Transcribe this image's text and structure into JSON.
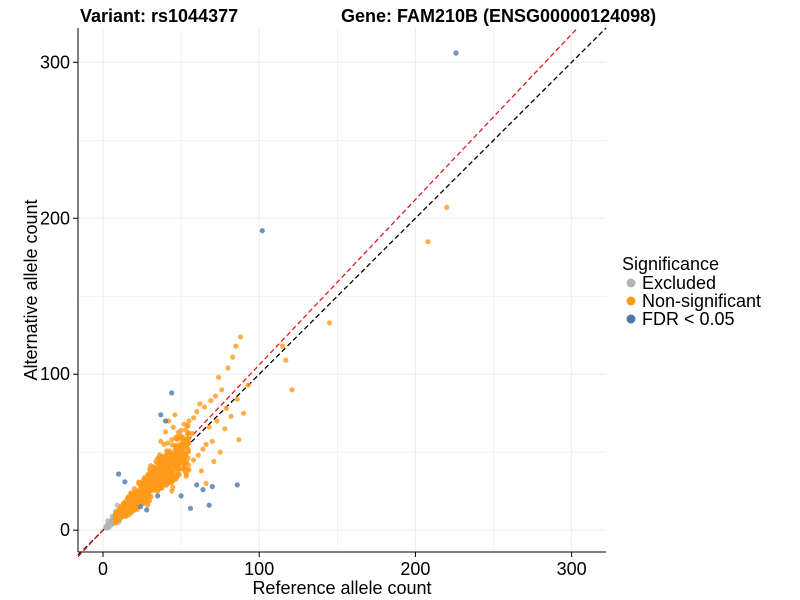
{
  "chart_data": {
    "type": "scatter",
    "title_left": "Variant: rs1044377",
    "title_right": "Gene: FAM210B (ENSG00000124098)",
    "xlabel": "Reference allele count",
    "ylabel": "Alternative allele count",
    "xlim": [
      -16,
      322
    ],
    "ylim": [
      -14,
      322
    ],
    "x_ticks": [
      0,
      100,
      200,
      300
    ],
    "y_ticks": [
      0,
      100,
      200,
      300
    ],
    "minor_ticks": [
      50,
      150,
      250
    ],
    "grid": true,
    "reference_lines": [
      {
        "name": "identity",
        "slope": 1.0,
        "color": "#000000"
      },
      {
        "name": "allelic-bias",
        "slope": 1.06,
        "color": "#e41a1c"
      }
    ],
    "legend": {
      "title": "Significance",
      "position": "right",
      "entries": [
        {
          "label": "Excluded",
          "color": "#b3b3b3"
        },
        {
          "label": "Non-significant",
          "color": "#ff9a1a"
        },
        {
          "label": "FDR < 0.05",
          "color": "#4a78ad"
        }
      ]
    },
    "series": [
      {
        "name": "Excluded",
        "color": "#b3b3b3",
        "cluster": {
          "n": 420,
          "x_min": 2,
          "x_max": 20,
          "slope": 0.92,
          "spread": 0.35
        },
        "points": [
          [
            3,
            6
          ],
          [
            5,
            4
          ],
          [
            6,
            9
          ],
          [
            8,
            12
          ],
          [
            10,
            5
          ],
          [
            12,
            15
          ],
          [
            14,
            9
          ],
          [
            16,
            18
          ],
          [
            4,
            2
          ],
          [
            9,
            16
          ],
          [
            18,
            11
          ],
          [
            20,
            14
          ]
        ]
      },
      {
        "name": "Non-significant",
        "color": "#ff9a1a",
        "cluster": {
          "n": 1100,
          "x_min": 8,
          "x_max": 55,
          "slope": 0.97,
          "spread": 0.42
        },
        "points": [
          [
            220,
            207
          ],
          [
            208,
            185
          ],
          [
            145,
            133
          ],
          [
            121,
            90
          ],
          [
            117,
            109
          ],
          [
            115,
            118
          ],
          [
            90,
            75
          ],
          [
            87,
            58
          ],
          [
            93,
            93
          ],
          [
            88,
            124
          ],
          [
            85,
            118
          ],
          [
            83,
            111
          ],
          [
            80,
            104
          ],
          [
            74,
            98
          ],
          [
            76,
            90
          ],
          [
            72,
            86
          ],
          [
            69,
            83
          ],
          [
            65,
            79
          ],
          [
            62,
            81
          ],
          [
            60,
            76
          ],
          [
            58,
            72
          ],
          [
            55,
            70
          ],
          [
            57,
            62
          ],
          [
            52,
            68
          ],
          [
            50,
            64
          ],
          [
            53,
            57
          ],
          [
            48,
            60
          ],
          [
            46,
            74
          ],
          [
            45,
            66
          ],
          [
            44,
            58
          ],
          [
            70,
            57
          ],
          [
            66,
            55
          ],
          [
            64,
            52
          ],
          [
            61,
            48
          ],
          [
            58,
            45
          ],
          [
            75,
            50
          ],
          [
            68,
            66
          ],
          [
            73,
            70
          ],
          [
            79,
            78
          ],
          [
            82,
            73
          ],
          [
            86,
            84
          ],
          [
            78,
            65
          ],
          [
            71,
            44
          ],
          [
            63,
            38
          ],
          [
            66,
            30
          ],
          [
            42,
            70
          ],
          [
            40,
            63
          ],
          [
            39,
            55
          ],
          [
            37,
            57
          ],
          [
            47,
            47
          ]
        ]
      },
      {
        "name": "FDR < 0.05",
        "color": "#4a78ad",
        "points": [
          [
            226,
            306
          ],
          [
            102,
            192
          ],
          [
            44,
            88
          ],
          [
            40,
            70
          ],
          [
            37,
            74
          ],
          [
            10,
            36
          ],
          [
            14,
            31
          ],
          [
            60,
            29
          ],
          [
            86,
            29
          ],
          [
            70,
            28
          ],
          [
            64,
            26
          ],
          [
            35,
            22
          ],
          [
            50,
            22
          ],
          [
            56,
            14
          ],
          [
            68,
            16
          ],
          [
            24,
            15
          ],
          [
            28,
            13
          ]
        ]
      }
    ]
  }
}
